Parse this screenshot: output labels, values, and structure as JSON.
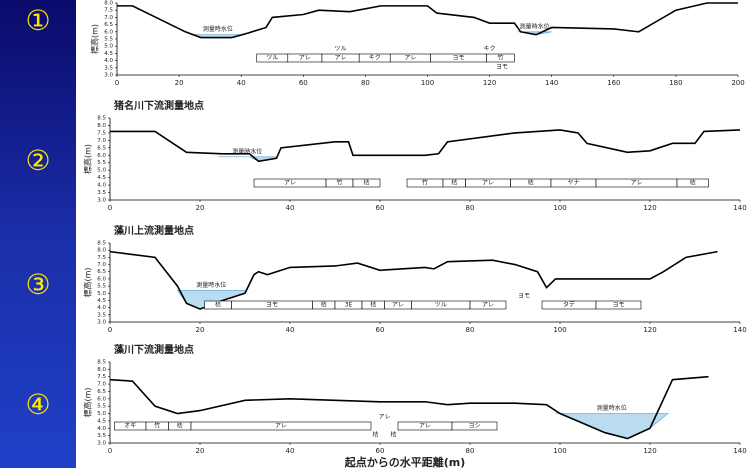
{
  "chart_data": [
    {
      "type": "line",
      "label": "①",
      "ylabel": "標高(m)",
      "x": [
        0,
        5,
        22,
        27,
        37,
        42,
        48,
        50,
        60,
        65,
        75,
        85,
        100,
        103,
        115,
        120,
        128,
        130,
        135,
        140,
        160,
        168,
        180,
        190,
        200
      ],
      "values": [
        7.8,
        7.8,
        6.0,
        5.6,
        5.6,
        5.9,
        6.3,
        7.0,
        7.2,
        7.5,
        7.4,
        7.8,
        7.8,
        7.3,
        7.0,
        6.6,
        6.6,
        6.0,
        5.8,
        6.3,
        6.2,
        6.0,
        7.5,
        8.0,
        8.0
      ],
      "color": "#000000",
      "water": [
        {
          "label": "測量時水位",
          "level": 5.8,
          "x": [
            24,
            41
          ]
        },
        {
          "label": "測量時水位",
          "level": 6.0,
          "x": [
            129,
            140
          ]
        }
      ],
      "vegetation": [
        {
          "label": "ツル",
          "x": [
            45,
            55
          ]
        },
        {
          "label": "アレ",
          "x": [
            55,
            66
          ]
        },
        {
          "label": "アレ",
          "x": [
            66,
            78
          ]
        },
        {
          "label": "キク",
          "x": [
            78,
            88
          ]
        },
        {
          "label": "アレ",
          "x": [
            88,
            101
          ]
        },
        {
          "label": "ヨモ",
          "x": [
            101,
            119
          ]
        },
        {
          "label": "竹",
          "x": [
            119,
            128
          ]
        }
      ],
      "notes": [
        {
          "text": "ツル",
          "x": 72,
          "position": "above"
        },
        {
          "text": "キク",
          "x": 120,
          "position": "above"
        },
        {
          "text": "ヨモ",
          "x": 124,
          "position": "below"
        }
      ],
      "xlim": [
        0,
        200
      ],
      "xticks": [
        0,
        20,
        40,
        60,
        80,
        100,
        120,
        140,
        160,
        180,
        200
      ],
      "ylim": [
        3,
        8
      ],
      "yticks": [
        {
          "value": 3,
          "label": "3.0"
        },
        3.5,
        {
          "value": 4,
          "label": "4.0"
        },
        4.5,
        {
          "value": 5,
          "label": "5.0"
        },
        5.5,
        {
          "value": 6,
          "label": "6.0"
        },
        6.5,
        {
          "value": 7,
          "label": "7.0"
        },
        7.5,
        {
          "value": 8,
          "label": "8.0"
        }
      ]
    },
    {
      "type": "line",
      "label": "②",
      "title": "猪名川下流測量地点",
      "ylabel": "標高(m)",
      "x": [
        0,
        10,
        17,
        25,
        31,
        33,
        37,
        38,
        50,
        53,
        54,
        60,
        70,
        73,
        75,
        90,
        100,
        104,
        106,
        115,
        120,
        125,
        130,
        132,
        140
      ],
      "values": [
        7.6,
        7.6,
        6.2,
        6.1,
        6.1,
        5.6,
        5.8,
        6.5,
        6.9,
        6.9,
        6.0,
        6.0,
        6.0,
        6.1,
        6.9,
        7.5,
        7.7,
        7.5,
        6.8,
        6.2,
        6.3,
        6.8,
        6.8,
        7.6,
        7.7
      ],
      "color": "#000000",
      "water": [
        {
          "label": "測量時水位",
          "level": 5.9,
          "x": [
            24,
            37
          ]
        }
      ],
      "vegetation": [
        {
          "label": "アレ",
          "x": [
            32,
            48
          ]
        },
        {
          "label": "竹",
          "x": [
            48,
            54
          ]
        },
        {
          "label": "桔",
          "x": [
            54,
            60
          ]
        },
        {
          "label": "竹",
          "x": [
            66,
            74
          ]
        },
        {
          "label": "桔",
          "x": [
            74,
            79
          ]
        },
        {
          "label": "アレ",
          "x": [
            79,
            89
          ]
        },
        {
          "label": "桔",
          "x": [
            89,
            98
          ]
        },
        {
          "label": "ヤナ",
          "x": [
            98,
            108
          ]
        },
        {
          "label": "アレ",
          "x": [
            108,
            126
          ]
        },
        {
          "label": "桔",
          "x": [
            126,
            133
          ]
        }
      ],
      "notes": [],
      "xlim": [
        0,
        140
      ],
      "xticks": [
        0,
        20,
        40,
        60,
        80,
        100,
        120,
        140
      ],
      "ylim": [
        3,
        8.5
      ],
      "yticks": [
        {
          "value": 3,
          "label": "3.0"
        },
        3.5,
        {
          "value": 4,
          "label": "4.0"
        },
        4.5,
        {
          "value": 5,
          "label": "5.0"
        },
        5.5,
        {
          "value": 6,
          "label": "6.0"
        },
        6.5,
        {
          "value": 7,
          "label": "7.0"
        },
        7.5,
        {
          "value": 8,
          "label": "8.0"
        },
        8.5
      ]
    },
    {
      "type": "line",
      "label": "③",
      "title": "藻川上流測量地点",
      "ylabel": "標高(m)",
      "x": [
        0,
        10,
        15,
        17,
        20,
        25,
        30,
        32,
        33,
        35,
        40,
        50,
        55,
        60,
        70,
        72,
        75,
        85,
        90,
        95,
        97,
        99,
        110,
        120,
        123,
        128,
        135
      ],
      "values": [
        7.9,
        7.5,
        5.5,
        4.3,
        3.9,
        4.5,
        5.0,
        6.3,
        6.5,
        6.3,
        6.8,
        6.9,
        7.1,
        6.6,
        6.8,
        6.7,
        7.2,
        7.3,
        7.0,
        6.5,
        5.4,
        6.0,
        6.0,
        6.0,
        6.5,
        7.5,
        7.9
      ],
      "color": "#000000",
      "water": [
        {
          "label": "測量時水位",
          "level": 5.2,
          "x": [
            15,
            30
          ]
        }
      ],
      "vegetation": [
        {
          "label": "桔",
          "x": [
            21,
            27
          ]
        },
        {
          "label": "ヨモ",
          "x": [
            27,
            45
          ]
        },
        {
          "label": "桔",
          "x": [
            45,
            50
          ]
        },
        {
          "label": "3E",
          "x": [
            50,
            56
          ]
        },
        {
          "label": "桔",
          "x": [
            56,
            61
          ]
        },
        {
          "label": "アレ",
          "x": [
            61,
            67
          ]
        },
        {
          "label": "ツル",
          "x": [
            67,
            80
          ]
        },
        {
          "label": "アレ",
          "x": [
            80,
            88
          ]
        },
        {
          "label": "タデ",
          "x": [
            96,
            108
          ]
        },
        {
          "label": "ヨモ",
          "x": [
            108,
            118
          ]
        }
      ],
      "notes": [
        {
          "text": "ヨモ",
          "x": 92,
          "position": "above"
        }
      ],
      "xlim": [
        0,
        140
      ],
      "xticks": [
        0,
        20,
        40,
        60,
        80,
        100,
        120,
        140
      ],
      "ylim": [
        3,
        8.5
      ],
      "yticks": [
        {
          "value": 3,
          "label": "3.0"
        },
        3.5,
        {
          "value": 4,
          "label": "4.0"
        },
        4.5,
        {
          "value": 5,
          "label": "5.0"
        },
        5.5,
        {
          "value": 6,
          "label": "6.0"
        },
        6.5,
        {
          "value": 7,
          "label": "7.0"
        },
        7.5,
        {
          "value": 8,
          "label": "8.0"
        },
        8.5
      ]
    },
    {
      "type": "line",
      "label": "④",
      "title": "藻川下流測量地点",
      "ylabel": "標高(m)",
      "xlabel": "起点からの水平距離(m)",
      "x": [
        0,
        5,
        10,
        15,
        20,
        30,
        40,
        50,
        60,
        70,
        75,
        80,
        90,
        97,
        100,
        110,
        115,
        120,
        125,
        133
      ],
      "values": [
        7.3,
        7.2,
        5.5,
        5.0,
        5.2,
        5.9,
        6.0,
        5.9,
        5.8,
        5.8,
        5.6,
        5.7,
        5.7,
        5.6,
        5.0,
        3.7,
        3.3,
        4.0,
        7.3,
        7.5
      ],
      "color": "#000000",
      "water": [
        {
          "label": "測量時水位",
          "level": 5.0,
          "x": [
            99,
            124
          ]
        }
      ],
      "vegetation": [
        {
          "label": "オギ",
          "x": [
            1,
            8
          ]
        },
        {
          "label": "竹",
          "x": [
            8,
            13
          ]
        },
        {
          "label": "桔",
          "x": [
            13,
            18
          ]
        },
        {
          "label": "アレ",
          "x": [
            18,
            58
          ]
        },
        {
          "label": "アレ",
          "x": [
            64,
            76
          ]
        },
        {
          "label": "ヨシ",
          "x": [
            76,
            86
          ]
        }
      ],
      "notes": [
        {
          "text": "アレ",
          "x": 61,
          "position": "above"
        },
        {
          "text": "桔",
          "x": 59,
          "position": "below"
        },
        {
          "text": "桔",
          "x": 63,
          "position": "below"
        }
      ],
      "xlim": [
        0,
        140
      ],
      "xticks": [
        0,
        20,
        40,
        60,
        80,
        100,
        120,
        140
      ],
      "ylim": [
        3,
        8.5
      ],
      "yticks": [
        {
          "value": 3,
          "label": "3.0"
        },
        3.5,
        {
          "value": 4,
          "label": "4.0"
        },
        4.5,
        {
          "value": 5,
          "label": "5.0"
        },
        5.5,
        {
          "value": 6,
          "label": "6.0"
        },
        6.5,
        {
          "value": 7,
          "label": "7.0"
        },
        7.5,
        {
          "value": 8,
          "label": "8.0"
        },
        8.5
      ]
    }
  ]
}
